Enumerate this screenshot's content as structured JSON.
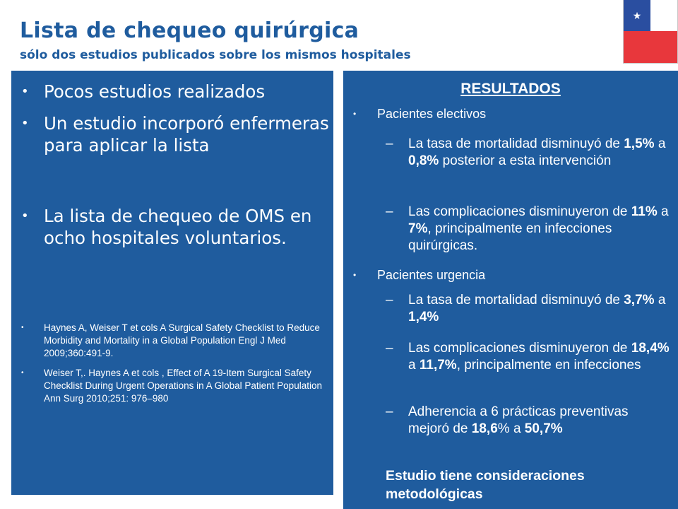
{
  "header": {
    "title": "Lista de chequeo quirúrgica",
    "subtitle": "sólo dos estudios publicados sobre los mismos hospitales"
  },
  "left_panel": {
    "bullets": [
      "Pocos estudios realizados",
      "Un estudio incorporó enfermeras para aplicar la lista",
      "La lista de chequeo de OMS en ocho hospitales voluntarios."
    ],
    "references": [
      "Haynes A, Weiser T et cols A Surgical Safety Checklist to Reduce Morbidity and Mortality in a Global Population Engl J Med 2009;360:491-9.",
      "Weiser T,. Haynes A et cols , Effect of A 19-Item Surgical Safety Checklist During Urgent Operations in A Global Patient Population Ann Surg 2010;251: 976–980"
    ]
  },
  "right_panel": {
    "title": "RESULTADOS",
    "group1": {
      "label": "Pacientes electivos",
      "item1": {
        "a": "La tasa de mortalidad disminuyó de ",
        "b": "1,5%",
        "c": " a ",
        "d": "0,8%",
        "e": " posterior a esta intervención"
      },
      "item2": {
        "a": "Las complicaciones disminuyeron de  ",
        "b": "11%",
        "c": " a  ",
        "d": "7%",
        "e": ", principalmente en infecciones quirúrgicas."
      }
    },
    "group2": {
      "label": "Pacientes urgencia",
      "item1": {
        "a": "La tasa de mortalidad disminuyó de ",
        "b": "3,7%",
        "c": " a ",
        "d": "1,4%"
      },
      "item2": {
        "a": "Las complicaciones disminuyeron de  ",
        "b": "18,4%",
        "c": " a  ",
        "d": "11,7%",
        "e": ", principalmente en infecciones"
      },
      "item3": {
        "a": "Adherencia a 6 prácticas preventivas mejoró de ",
        "b": "18,6",
        "c": "% a ",
        "d": "50,7%"
      }
    },
    "closing": "Estudio tiene consideraciones metodológicas"
  },
  "colors": {
    "brand_blue": "#1f5c9e",
    "flag_blue": "#2a4ea0",
    "flag_red": "#e8373c"
  }
}
